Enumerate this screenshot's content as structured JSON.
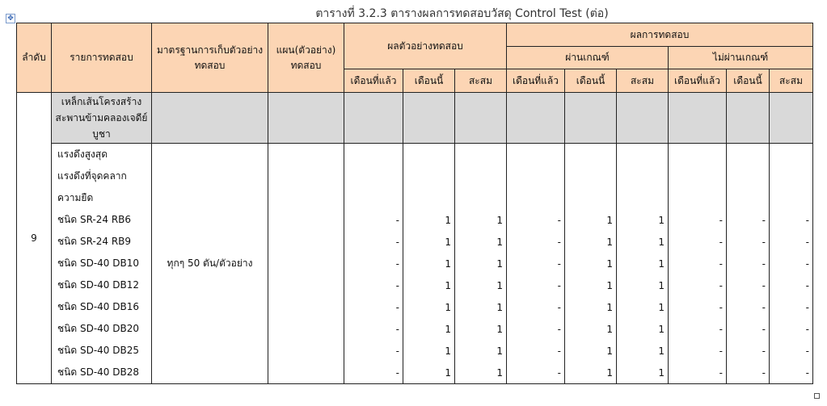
{
  "title": "ตารางที่ 3.2.3 ตารางผลการทดสอบวัสดุ Control Test (ต่อ)",
  "headers": {
    "no": "ลำดับ",
    "item": "รายการทดสอบ",
    "standard": "มาตรฐานการเก็บตัวอย่างทดสอบ",
    "plan": "แผน(ตัวอย่าง) ทดสอบ",
    "sample_result": "ผลตัวอย่างทดสอบ",
    "test_result": "ผลการทดสอบ",
    "pass": "ผ่านเกณฑ์",
    "fail": "ไม่ผ่านเกณฑ์",
    "prev": "เดือนที่แล้ว",
    "this": "เดือนนี้",
    "cum": "สะสม"
  },
  "group": {
    "no": "9",
    "title": "เหล็กเส้นโครงสร้าง สะพานข้ามคลองเจดีย์บูชา",
    "standard": "ทุกๆ 50 ตัน/ตัวอย่าง"
  },
  "rows": [
    {
      "item": "แรงดึงสูงสุด",
      "vals": [
        "",
        "",
        "",
        "",
        "",
        "",
        "",
        "",
        ""
      ]
    },
    {
      "item": "แรงดึงที่จุดคลาก",
      "vals": [
        "",
        "",
        "",
        "",
        "",
        "",
        "",
        "",
        ""
      ]
    },
    {
      "item": "ความยืด",
      "vals": [
        "",
        "",
        "",
        "",
        "",
        "",
        "",
        "",
        ""
      ]
    },
    {
      "item": "ชนิด SR-24 RB6",
      "vals": [
        "-",
        "1",
        "1",
        "-",
        "1",
        "1",
        "-",
        "-",
        "-"
      ]
    },
    {
      "item": "ชนิด SR-24 RB9",
      "vals": [
        "-",
        "1",
        "1",
        "-",
        "1",
        "1",
        "-",
        "-",
        "-"
      ]
    },
    {
      "item": "ชนิด SD-40 DB10",
      "vals": [
        "-",
        "1",
        "1",
        "-",
        "1",
        "1",
        "-",
        "-",
        "-"
      ]
    },
    {
      "item": "ชนิด SD-40 DB12",
      "vals": [
        "-",
        "1",
        "1",
        "-",
        "1",
        "1",
        "-",
        "-",
        "-"
      ]
    },
    {
      "item": "ชนิด SD-40 DB16",
      "vals": [
        "-",
        "1",
        "1",
        "-",
        "1",
        "1",
        "-",
        "-",
        "-"
      ]
    },
    {
      "item": "ชนิด SD-40 DB20",
      "vals": [
        "-",
        "1",
        "1",
        "-",
        "1",
        "1",
        "-",
        "-",
        "-"
      ]
    },
    {
      "item": "ชนิด SD-40 DB25",
      "vals": [
        "-",
        "1",
        "1",
        "-",
        "1",
        "1",
        "-",
        "-",
        "-"
      ]
    },
    {
      "item": "ชนิด SD-40 DB28",
      "vals": [
        "-",
        "1",
        "1",
        "-",
        "1",
        "1",
        "-",
        "-",
        "-"
      ]
    }
  ],
  "colors": {
    "header_bg": "#fcd5b4",
    "group_bg": "#d9d9d9"
  }
}
